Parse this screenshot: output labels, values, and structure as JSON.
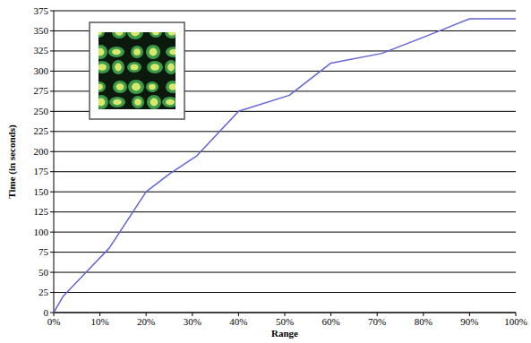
{
  "chart_data": {
    "type": "line",
    "x_label": "Range",
    "y_label": "Time (in seconds)",
    "x": [
      0,
      2,
      7,
      12,
      20,
      25,
      31,
      40,
      51,
      60,
      71,
      80,
      90,
      100
    ],
    "values": [
      0,
      20,
      50,
      80,
      150,
      172,
      195,
      250,
      270,
      310,
      322,
      342,
      365,
      365
    ],
    "color": "#6464d2",
    "xlim": [
      0,
      100
    ],
    "xticks": [
      {
        "value": 0,
        "label": "0%"
      },
      {
        "value": 10,
        "label": "10%"
      },
      {
        "value": 20,
        "label": "20%"
      },
      {
        "value": 30,
        "label": "30%"
      },
      {
        "value": 40,
        "label": "40%"
      },
      {
        "value": 50,
        "label": "50%"
      },
      {
        "value": 60,
        "label": "60%"
      },
      {
        "value": 70,
        "label": "70%"
      },
      {
        "value": 80,
        "label": "80%"
      },
      {
        "value": 90,
        "label": "90%"
      },
      {
        "value": 100,
        "label": "100%"
      }
    ],
    "ylim": [
      0,
      375
    ],
    "yticks": [
      0,
      25,
      50,
      75,
      100,
      125,
      150,
      175,
      200,
      225,
      250,
      275,
      300,
      325,
      350,
      375
    ],
    "grid": true
  }
}
